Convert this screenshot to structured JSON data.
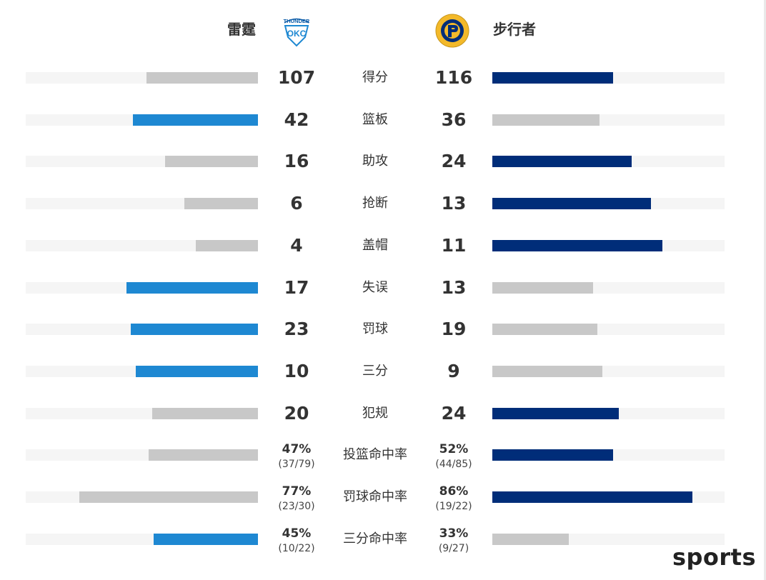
{
  "teams": {
    "home": {
      "name": "雷霆",
      "logo_text": "THUNDER",
      "color": "#1e88d2"
    },
    "away": {
      "name": "步行者",
      "logo_text": "INDIANA PACERS",
      "color": "#002d79"
    }
  },
  "colors": {
    "track": "#f5f5f5",
    "loser": "#c8c8c8"
  },
  "chart_data": {
    "type": "bar",
    "categories": [
      "得分",
      "篮板",
      "助攻",
      "抢断",
      "盖帽",
      "失误",
      "罚球",
      "三分",
      "犯规",
      "投篮命中率",
      "罚球命中率",
      "三分命中率"
    ],
    "series": [
      {
        "name": "雷霆",
        "values": [
          107,
          42,
          16,
          6,
          4,
          17,
          23,
          10,
          20,
          47,
          77,
          45
        ]
      },
      {
        "name": "步行者",
        "values": [
          116,
          36,
          24,
          13,
          11,
          13,
          19,
          9,
          24,
          52,
          86,
          33
        ]
      }
    ],
    "home_display": [
      "107",
      "42",
      "16",
      "6",
      "4",
      "17",
      "23",
      "10",
      "20",
      "47%",
      "77%",
      "45%"
    ],
    "away_display": [
      "116",
      "36",
      "24",
      "13",
      "11",
      "13",
      "19",
      "9",
      "24",
      "52%",
      "86%",
      "33%"
    ],
    "home_detail": [
      "",
      "",
      "",
      "",
      "",
      "",
      "",
      "",
      "",
      "(37/79)",
      "(23/30)",
      "(10/22)"
    ],
    "away_detail": [
      "",
      "",
      "",
      "",
      "",
      "",
      "",
      "",
      "",
      "(44/85)",
      "(19/22)",
      "(9/27)"
    ],
    "highlight": [
      "away",
      "home",
      "away",
      "away",
      "away",
      "home",
      "home",
      "home",
      "away",
      "away",
      "away",
      "home"
    ]
  },
  "footer": {
    "brand": "sports"
  }
}
